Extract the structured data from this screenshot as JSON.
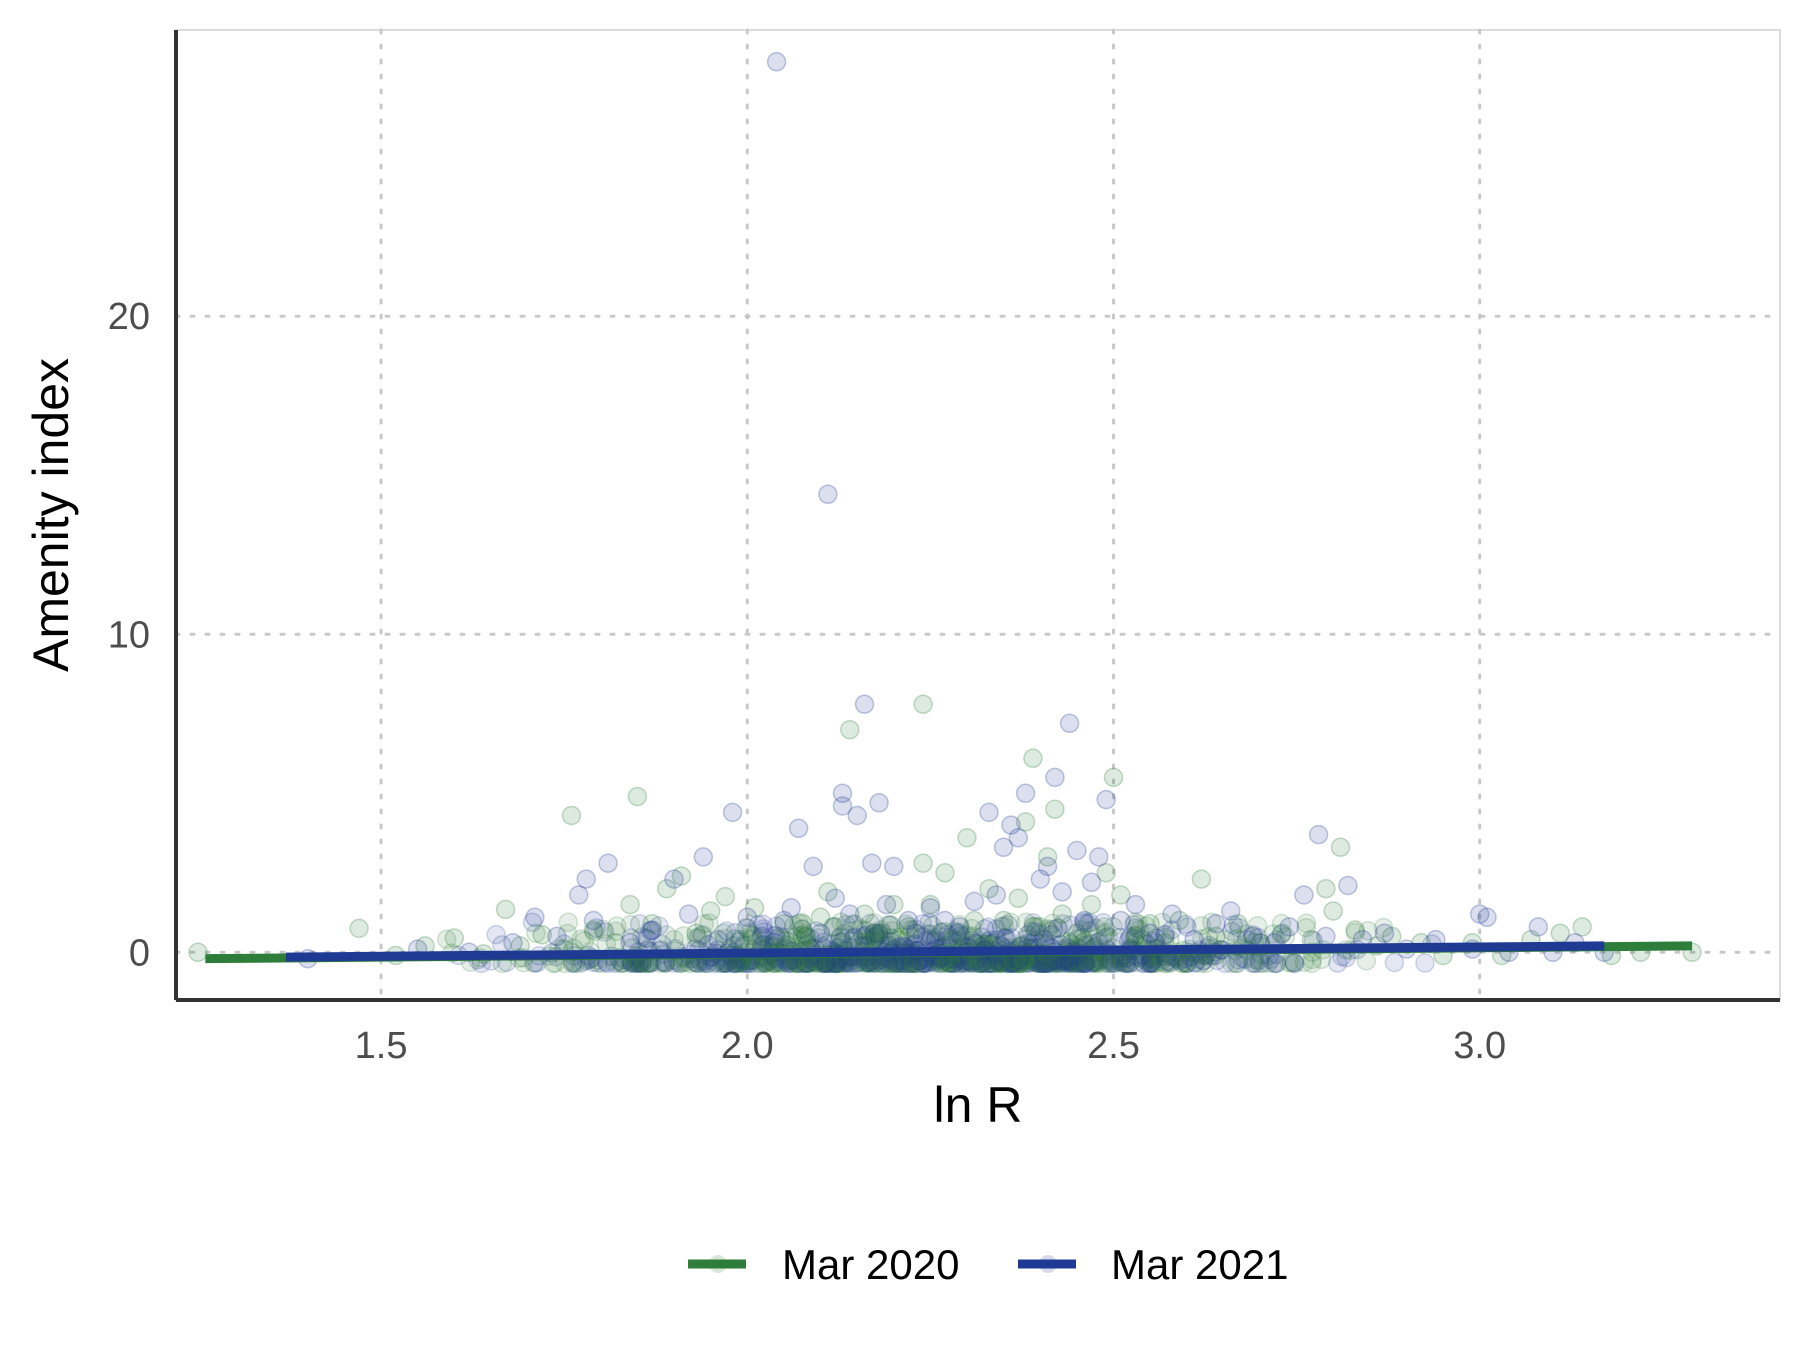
{
  "chart_data": {
    "type": "scatter",
    "title": "",
    "xlabel": "ln R",
    "ylabel": "Amenity index",
    "xlim": [
      1.22,
      3.41
    ],
    "ylim": [
      -1.5,
      29.0
    ],
    "x_ticks": [
      1.5,
      2.0,
      2.5,
      3.0
    ],
    "x_tick_labels": [
      "1.5",
      "2.0",
      "2.5",
      "3.0"
    ],
    "y_ticks": [
      0,
      10,
      20
    ],
    "y_tick_labels": [
      "0",
      "10",
      "20"
    ],
    "grid": "major, dotted",
    "legend": "bottom",
    "series": [
      {
        "name": "Mar 2020",
        "color": "#2e7d3a",
        "fit_line": [
          [
            1.26,
            -0.2
          ],
          [
            3.29,
            0.2
          ]
        ],
        "points": [
          [
            1.25,
            0.0
          ],
          [
            1.47,
            0.75
          ],
          [
            1.52,
            -0.1
          ],
          [
            1.56,
            0.2
          ],
          [
            1.6,
            0.45
          ],
          [
            1.64,
            -0.05
          ],
          [
            1.67,
            1.35
          ],
          [
            1.69,
            0.2
          ],
          [
            1.72,
            0.55
          ],
          [
            1.75,
            0.1
          ],
          [
            1.76,
            4.3
          ],
          [
            1.79,
            0.7
          ],
          [
            1.82,
            0.3
          ],
          [
            1.84,
            1.5
          ],
          [
            1.85,
            4.9
          ],
          [
            1.87,
            0.9
          ],
          [
            1.89,
            2.0
          ],
          [
            1.91,
            2.4
          ],
          [
            1.93,
            0.6
          ],
          [
            1.95,
            1.3
          ],
          [
            1.97,
            1.75
          ],
          [
            1.99,
            0.4
          ],
          [
            2.01,
            1.4
          ],
          [
            2.03,
            0.2
          ],
          [
            2.05,
            0.9
          ],
          [
            2.08,
            0.5
          ],
          [
            2.1,
            1.1
          ],
          [
            2.11,
            1.9
          ],
          [
            2.13,
            0.3
          ],
          [
            2.14,
            7.0
          ],
          [
            2.16,
            1.2
          ],
          [
            2.18,
            0.6
          ],
          [
            2.2,
            1.5
          ],
          [
            2.22,
            0.8
          ],
          [
            2.24,
            7.8
          ],
          [
            2.24,
            2.8
          ],
          [
            2.25,
            1.5
          ],
          [
            2.27,
            2.5
          ],
          [
            2.28,
            0.4
          ],
          [
            2.3,
            3.6
          ],
          [
            2.31,
            1.0
          ],
          [
            2.33,
            2.0
          ],
          [
            2.35,
            1.0
          ],
          [
            2.37,
            1.7
          ],
          [
            2.38,
            4.1
          ],
          [
            2.39,
            6.1
          ],
          [
            2.41,
            3.0
          ],
          [
            2.42,
            4.5
          ],
          [
            2.43,
            1.2
          ],
          [
            2.45,
            0.6
          ],
          [
            2.47,
            1.5
          ],
          [
            2.49,
            2.5
          ],
          [
            2.5,
            5.5
          ],
          [
            2.51,
            1.8
          ],
          [
            2.53,
            0.5
          ],
          [
            2.55,
            0.9
          ],
          [
            2.57,
            0.3
          ],
          [
            2.59,
            1.0
          ],
          [
            2.62,
            2.3
          ],
          [
            2.64,
            0.5
          ],
          [
            2.67,
            0.9
          ],
          [
            2.7,
            0.3
          ],
          [
            2.73,
            0.6
          ],
          [
            2.77,
            0.4
          ],
          [
            2.79,
            2.0
          ],
          [
            2.8,
            1.3
          ],
          [
            2.81,
            3.3
          ],
          [
            2.83,
            0.7
          ],
          [
            2.86,
            0.2
          ],
          [
            2.88,
            0.5
          ],
          [
            2.92,
            0.3
          ],
          [
            2.95,
            -0.1
          ],
          [
            2.99,
            0.3
          ],
          [
            3.03,
            -0.1
          ],
          [
            3.07,
            0.4
          ],
          [
            3.11,
            0.6
          ],
          [
            3.14,
            0.8
          ],
          [
            3.18,
            -0.1
          ],
          [
            3.22,
            0.0
          ],
          [
            3.29,
            0.0
          ]
        ]
      },
      {
        "name": "Mar 2021",
        "color": "#1f3a93",
        "fit_line": [
          [
            1.37,
            -0.15
          ],
          [
            3.17,
            0.2
          ]
        ],
        "points": [
          [
            1.4,
            -0.2
          ],
          [
            1.55,
            0.1
          ],
          [
            1.62,
            0.0
          ],
          [
            1.68,
            0.3
          ],
          [
            1.71,
            1.1
          ],
          [
            1.74,
            0.5
          ],
          [
            1.77,
            1.8
          ],
          [
            1.78,
            2.3
          ],
          [
            1.79,
            1.0
          ],
          [
            1.81,
            2.8
          ],
          [
            1.84,
            0.3
          ],
          [
            1.87,
            0.7
          ],
          [
            1.9,
            2.3
          ],
          [
            1.92,
            1.2
          ],
          [
            1.94,
            3.0
          ],
          [
            1.96,
            0.4
          ],
          [
            1.98,
            4.4
          ],
          [
            2.0,
            1.1
          ],
          [
            2.02,
            0.5
          ],
          [
            2.04,
            28.0
          ],
          [
            2.05,
            1.0
          ],
          [
            2.06,
            1.4
          ],
          [
            2.07,
            3.9
          ],
          [
            2.09,
            2.7
          ],
          [
            2.1,
            0.6
          ],
          [
            2.11,
            14.4
          ],
          [
            2.12,
            1.7
          ],
          [
            2.13,
            5.0
          ],
          [
            2.13,
            4.6
          ],
          [
            2.14,
            1.2
          ],
          [
            2.15,
            4.3
          ],
          [
            2.16,
            7.8
          ],
          [
            2.17,
            2.8
          ],
          [
            2.18,
            4.7
          ],
          [
            2.19,
            1.5
          ],
          [
            2.2,
            2.7
          ],
          [
            2.22,
            1.0
          ],
          [
            2.23,
            0.6
          ],
          [
            2.25,
            1.4
          ],
          [
            2.27,
            1.0
          ],
          [
            2.29,
            0.8
          ],
          [
            2.31,
            1.6
          ],
          [
            2.33,
            4.4
          ],
          [
            2.34,
            1.8
          ],
          [
            2.35,
            3.3
          ],
          [
            2.36,
            4.0
          ],
          [
            2.37,
            3.6
          ],
          [
            2.38,
            5.0
          ],
          [
            2.4,
            2.3
          ],
          [
            2.41,
            2.7
          ],
          [
            2.42,
            5.5
          ],
          [
            2.43,
            1.9
          ],
          [
            2.44,
            7.2
          ],
          [
            2.45,
            3.2
          ],
          [
            2.46,
            1.0
          ],
          [
            2.47,
            2.2
          ],
          [
            2.48,
            3.0
          ],
          [
            2.49,
            4.8
          ],
          [
            2.51,
            1.0
          ],
          [
            2.53,
            1.5
          ],
          [
            2.55,
            0.6
          ],
          [
            2.58,
            1.2
          ],
          [
            2.61,
            0.4
          ],
          [
            2.64,
            0.9
          ],
          [
            2.66,
            1.3
          ],
          [
            2.69,
            0.5
          ],
          [
            2.72,
            0.3
          ],
          [
            2.74,
            0.8
          ],
          [
            2.76,
            1.8
          ],
          [
            2.78,
            3.7
          ],
          [
            2.79,
            0.5
          ],
          [
            2.82,
            2.1
          ],
          [
            2.84,
            0.4
          ],
          [
            2.87,
            0.6
          ],
          [
            2.9,
            0.1
          ],
          [
            2.94,
            0.4
          ],
          [
            2.99,
            0.1
          ],
          [
            3.0,
            1.2
          ],
          [
            3.01,
            1.1
          ],
          [
            3.04,
            0.0
          ],
          [
            3.08,
            0.8
          ],
          [
            3.1,
            0.0
          ],
          [
            3.13,
            0.3
          ],
          [
            3.17,
            0.0
          ]
        ]
      }
    ]
  },
  "legend": {
    "items": [
      {
        "label": "Mar 2020",
        "color": "#2e7d3a"
      },
      {
        "label": "Mar 2021",
        "color": "#1f3a93"
      }
    ]
  }
}
